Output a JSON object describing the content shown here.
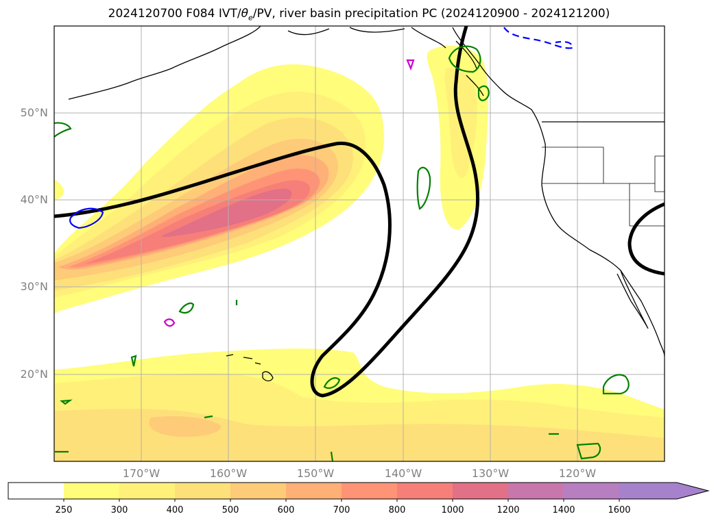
{
  "title": {
    "main": "2024120700 F084 IVT/",
    "theta": "θ",
    "theta_sub": "e",
    "tail": "/PV, river basin precipitation PC (2024120900 - 2024121200)"
  },
  "axes": {
    "lat_labels": [
      "50°N",
      "40°N",
      "30°N",
      "20°N"
    ],
    "lon_labels": [
      "170°W",
      "160°W",
      "150°W",
      "140°W",
      "130°W",
      "120°W"
    ]
  },
  "colorbar": {
    "ticks": [
      "250",
      "300",
      "400",
      "500",
      "600",
      "700",
      "800",
      "1000",
      "1200",
      "1400",
      "1600"
    ],
    "colors": [
      "#ffffff",
      "#fffd7a",
      "#fff07a",
      "#fee07a",
      "#fecb78",
      "#feb077",
      "#fe9475",
      "#f67f79",
      "#e27086",
      "#c877ad",
      "#b77fbf",
      "#a682cc"
    ],
    "extend": "max"
  },
  "colors": {
    "ivt_fill": "#fffd7a",
    "pv_contour": "#000000",
    "theta_contour_cold": "#0000ff",
    "theta_contour_green": "#008000",
    "theta_contour_magenta": "#cc00cc",
    "coastline": "#000000",
    "gridline": "#b0b0b0",
    "tick_label": "#808080"
  },
  "map": {
    "projection": "plate carree",
    "lon_range": [
      "180°W",
      "110°W"
    ],
    "lat_range": [
      "10°N",
      "60°N"
    ],
    "grid": true
  }
}
